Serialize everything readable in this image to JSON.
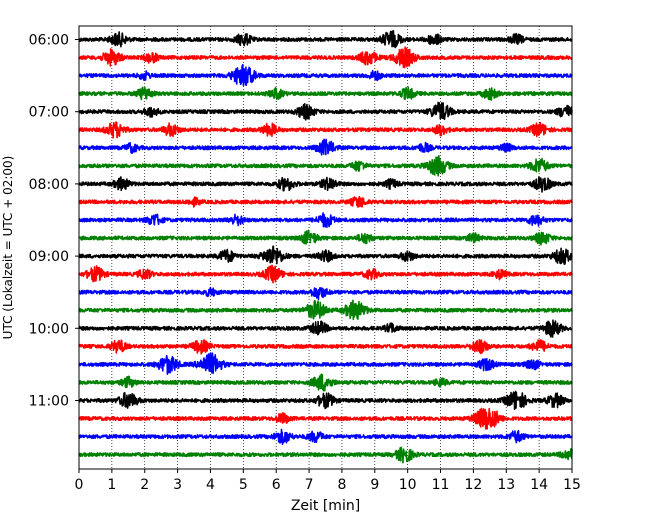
{
  "chart_data": {
    "type": "line",
    "title": "",
    "xlabel": "Zeit  [min]",
    "ylabel": "UTC (Lokalzeit = UTC + 02:00)",
    "xlim": [
      0,
      15
    ],
    "x_ticks": [
      0,
      1,
      2,
      3,
      4,
      5,
      6,
      7,
      8,
      9,
      10,
      11,
      12,
      13,
      14,
      15
    ],
    "x_tick_labels": [
      "0",
      "1",
      "2",
      "3",
      "4",
      "5",
      "6",
      "7",
      "8",
      "9",
      "10",
      "11",
      "12",
      "13",
      "14",
      "15"
    ],
    "y_tick_labels": [
      "06:00",
      "07:00",
      "08:00",
      "09:00",
      "10:00",
      "11:00"
    ],
    "grid": "vertical dotted",
    "trace_interval_minutes": 15,
    "trace_colors": [
      "#000000",
      "#ff0000",
      "#0000ff",
      "#008000"
    ],
    "traces": [
      {
        "start": "06:00",
        "color": "#000000",
        "bursts": [
          {
            "t": 1.2,
            "a": 1.1
          },
          {
            "t": 5.0,
            "a": 1.0
          },
          {
            "t": 9.5,
            "a": 1.4
          },
          {
            "t": 10.8,
            "a": 0.9
          },
          {
            "t": 13.3,
            "a": 0.8
          }
        ]
      },
      {
        "start": "06:15",
        "color": "#ff0000",
        "bursts": [
          {
            "t": 1.0,
            "a": 1.3
          },
          {
            "t": 2.2,
            "a": 0.8
          },
          {
            "t": 8.8,
            "a": 1.2
          },
          {
            "t": 9.9,
            "a": 1.6
          }
        ]
      },
      {
        "start": "06:30",
        "color": "#0000ff",
        "bursts": [
          {
            "t": 2.0,
            "a": 0.6
          },
          {
            "t": 5.0,
            "a": 1.8
          },
          {
            "t": 9.0,
            "a": 0.7
          }
        ]
      },
      {
        "start": "06:45",
        "color": "#008000",
        "bursts": [
          {
            "t": 2.0,
            "a": 1.0
          },
          {
            "t": 6.0,
            "a": 0.8
          },
          {
            "t": 10.0,
            "a": 0.9
          },
          {
            "t": 12.5,
            "a": 0.9
          }
        ]
      },
      {
        "start": "07:00",
        "color": "#000000",
        "bursts": [
          {
            "t": 2.2,
            "a": 0.8
          },
          {
            "t": 6.9,
            "a": 1.2
          },
          {
            "t": 11.0,
            "a": 1.5
          },
          {
            "t": 14.8,
            "a": 1.0
          }
        ]
      },
      {
        "start": "07:15",
        "color": "#ff0000",
        "bursts": [
          {
            "t": 1.1,
            "a": 1.3
          },
          {
            "t": 2.8,
            "a": 1.0
          },
          {
            "t": 5.8,
            "a": 1.0
          },
          {
            "t": 11.0,
            "a": 0.8
          },
          {
            "t": 14.0,
            "a": 1.1
          }
        ]
      },
      {
        "start": "07:30",
        "color": "#0000ff",
        "bursts": [
          {
            "t": 1.6,
            "a": 0.7
          },
          {
            "t": 7.5,
            "a": 1.3
          },
          {
            "t": 10.5,
            "a": 0.7
          },
          {
            "t": 13.0,
            "a": 0.6
          }
        ]
      },
      {
        "start": "07:45",
        "color": "#008000",
        "bursts": [
          {
            "t": 8.5,
            "a": 0.8
          },
          {
            "t": 10.9,
            "a": 1.6
          },
          {
            "t": 14.0,
            "a": 1.2
          }
        ]
      },
      {
        "start": "08:00",
        "color": "#000000",
        "bursts": [
          {
            "t": 1.3,
            "a": 1.0
          },
          {
            "t": 6.3,
            "a": 1.1
          },
          {
            "t": 7.6,
            "a": 1.0
          },
          {
            "t": 9.5,
            "a": 0.7
          },
          {
            "t": 14.1,
            "a": 1.2
          }
        ]
      },
      {
        "start": "08:15",
        "color": "#ff0000",
        "bursts": [
          {
            "t": 3.5,
            "a": 0.6
          },
          {
            "t": 8.5,
            "a": 0.9
          }
        ]
      },
      {
        "start": "08:30",
        "color": "#0000ff",
        "bursts": [
          {
            "t": 2.3,
            "a": 0.9
          },
          {
            "t": 4.8,
            "a": 0.8
          },
          {
            "t": 7.5,
            "a": 1.1
          },
          {
            "t": 13.9,
            "a": 0.9
          }
        ]
      },
      {
        "start": "08:45",
        "color": "#008000",
        "bursts": [
          {
            "t": 7.0,
            "a": 1.1
          },
          {
            "t": 8.7,
            "a": 0.8
          },
          {
            "t": 12.0,
            "a": 0.7
          },
          {
            "t": 14.1,
            "a": 1.0
          }
        ]
      },
      {
        "start": "09:00",
        "color": "#000000",
        "bursts": [
          {
            "t": 4.5,
            "a": 1.0
          },
          {
            "t": 5.9,
            "a": 1.6
          },
          {
            "t": 7.5,
            "a": 0.9
          },
          {
            "t": 10.0,
            "a": 0.8
          },
          {
            "t": 14.7,
            "a": 1.3
          }
        ]
      },
      {
        "start": "09:15",
        "color": "#ff0000",
        "bursts": [
          {
            "t": 0.5,
            "a": 1.2
          },
          {
            "t": 2.0,
            "a": 0.8
          },
          {
            "t": 5.9,
            "a": 1.3
          },
          {
            "t": 8.9,
            "a": 0.8
          },
          {
            "t": 12.8,
            "a": 0.7
          }
        ]
      },
      {
        "start": "09:30",
        "color": "#0000ff",
        "bursts": [
          {
            "t": 4.0,
            "a": 0.6
          },
          {
            "t": 7.3,
            "a": 1.0
          }
        ]
      },
      {
        "start": "09:45",
        "color": "#008000",
        "bursts": [
          {
            "t": 7.2,
            "a": 1.5
          },
          {
            "t": 8.4,
            "a": 1.6
          }
        ]
      },
      {
        "start": "10:00",
        "color": "#000000",
        "bursts": [
          {
            "t": 7.3,
            "a": 1.1
          },
          {
            "t": 9.5,
            "a": 0.7
          },
          {
            "t": 14.4,
            "a": 1.3
          }
        ]
      },
      {
        "start": "10:15",
        "color": "#ff0000",
        "bursts": [
          {
            "t": 1.2,
            "a": 1.0
          },
          {
            "t": 3.7,
            "a": 1.1
          },
          {
            "t": 12.2,
            "a": 1.1
          },
          {
            "t": 14.0,
            "a": 1.0
          }
        ]
      },
      {
        "start": "10:30",
        "color": "#0000ff",
        "bursts": [
          {
            "t": 2.7,
            "a": 1.5
          },
          {
            "t": 4.0,
            "a": 1.8
          },
          {
            "t": 12.4,
            "a": 1.0
          },
          {
            "t": 13.8,
            "a": 0.8
          }
        ]
      },
      {
        "start": "10:45",
        "color": "#008000",
        "bursts": [
          {
            "t": 1.5,
            "a": 0.8
          },
          {
            "t": 7.4,
            "a": 1.4
          },
          {
            "t": 11.0,
            "a": 0.6
          }
        ]
      },
      {
        "start": "11:00",
        "color": "#000000",
        "bursts": [
          {
            "t": 1.5,
            "a": 1.3
          },
          {
            "t": 7.5,
            "a": 1.2
          },
          {
            "t": 13.3,
            "a": 1.6
          },
          {
            "t": 14.5,
            "a": 1.1
          }
        ]
      },
      {
        "start": "11:15",
        "color": "#ff0000",
        "bursts": [
          {
            "t": 6.2,
            "a": 0.8
          },
          {
            "t": 12.3,
            "a": 1.5
          },
          {
            "t": 12.6,
            "a": 1.1
          }
        ]
      },
      {
        "start": "11:30",
        "color": "#0000ff",
        "bursts": [
          {
            "t": 6.2,
            "a": 1.1
          },
          {
            "t": 7.2,
            "a": 0.9
          },
          {
            "t": 13.3,
            "a": 0.9
          }
        ]
      },
      {
        "start": "11:45",
        "color": "#008000",
        "bursts": [
          {
            "t": 9.9,
            "a": 1.2
          },
          {
            "t": 14.9,
            "a": 0.9
          }
        ]
      }
    ]
  }
}
